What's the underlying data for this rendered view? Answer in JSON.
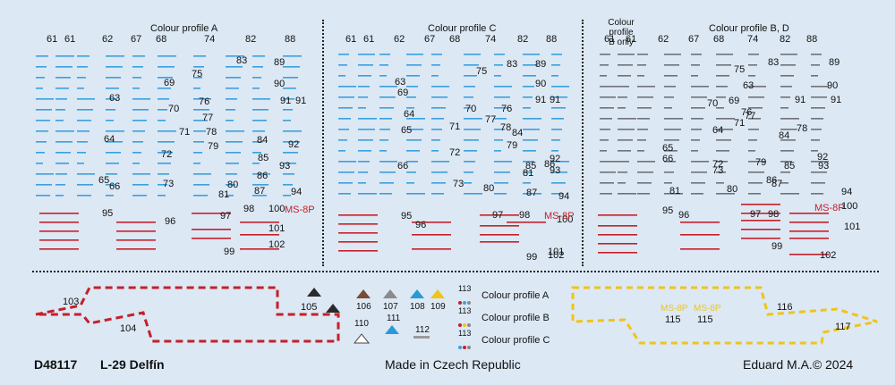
{
  "sheet": {
    "profiles": {
      "a": "Colour profile A",
      "c": "Colour profile C",
      "b_only": "Colour profile\nB only",
      "bd": "Colour profile B, D"
    },
    "columns": [
      "61",
      "61",
      "62",
      "67",
      "68",
      "74",
      "82",
      "88"
    ],
    "numbers": {
      "panel_a": [
        "75",
        "83",
        "89",
        "63",
        "69",
        "90",
        "70",
        "76",
        "91",
        "91",
        "77",
        "71",
        "64",
        "78",
        "84",
        "92",
        "72",
        "79",
        "85",
        "93",
        "65",
        "66",
        "73",
        "80",
        "86",
        "81",
        "87",
        "94",
        "97",
        "98",
        "100",
        "95",
        "96",
        "101",
        "99",
        "102"
      ],
      "panel_c": [
        "75",
        "83",
        "89",
        "63",
        "69",
        "90",
        "70",
        "76",
        "91",
        "91",
        "64",
        "77",
        "65",
        "71",
        "78",
        "84",
        "92",
        "72",
        "79",
        "85",
        "93",
        "66",
        "73",
        "80",
        "86",
        "81",
        "87",
        "94",
        "97",
        "98",
        "100",
        "95",
        "96",
        "101",
        "99",
        "102"
      ],
      "panel_bd": [
        "75",
        "83",
        "89",
        "63",
        "69",
        "90",
        "70",
        "76",
        "91",
        "91",
        "64",
        "77",
        "65",
        "71",
        "78",
        "84",
        "92",
        "72",
        "79",
        "85",
        "93",
        "66",
        "73",
        "80",
        "86",
        "81",
        "87",
        "94",
        "97",
        "98",
        "100",
        "95",
        "96",
        "101",
        "99",
        "102"
      ],
      "ms8p": "MS-8P"
    },
    "bottom": {
      "stripe_left": [
        "103",
        "104"
      ],
      "stripe_right": [
        "116",
        "117"
      ],
      "gold_labels": [
        "MS-8P",
        "MS-8P",
        "115",
        "115"
      ],
      "triangles": [
        "105",
        "106",
        "107",
        "108",
        "109",
        "110",
        "111",
        "112",
        "113"
      ],
      "legend": [
        "Colour profile A",
        "Colour profile B",
        "Colour profile C"
      ]
    },
    "footer": {
      "code": "D48117",
      "title": "L-29 Delfín",
      "made_in": "Made in Czech Republic",
      "brand": "Eduard M.A.© 2024"
    },
    "colors": {
      "background": "#dce8f4",
      "stencil_blue": "#3aa0e0",
      "stencil_red": "#c4202a",
      "stencil_grey": "#6f7278",
      "stripe_red": "#c4202a",
      "stripe_yellow": "#f0c419",
      "tri_black": "#2a2a2a",
      "tri_brown": "#7a4a36",
      "tri_grey": "#8b8b8b",
      "tri_blue": "#2a9ad6",
      "tri_yellow": "#f0c419",
      "tri_white": "#ffffff"
    }
  }
}
